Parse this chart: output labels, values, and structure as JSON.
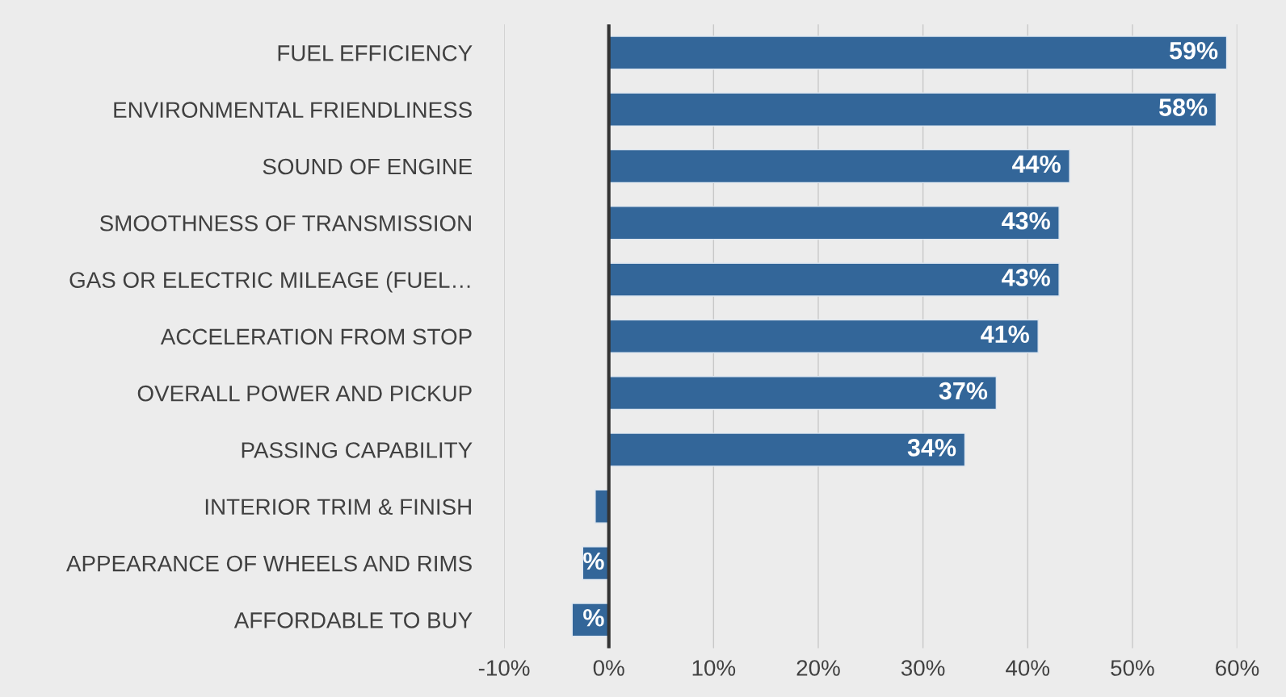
{
  "chart_data": {
    "type": "bar",
    "orientation": "horizontal",
    "categories": [
      "FUEL EFFICIENCY",
      "ENVIRONMENTAL FRIENDLINESS",
      "SOUND OF ENGINE",
      "SMOOTHNESS OF TRANSMISSION",
      "GAS OR ELECTRIC MILEAGE (FUEL…",
      "ACCELERATION FROM STOP",
      "OVERALL POWER AND PICKUP",
      "PASSING CAPABILITY",
      "INTERIOR TRIM & FINISH",
      "APPEARANCE OF WHEELS AND RIMS",
      "AFFORDABLE TO BUY"
    ],
    "values": [
      59,
      58,
      44,
      43,
      43,
      41,
      37,
      34,
      -1.3,
      -2.5,
      -3.5
    ],
    "value_labels": [
      "59%",
      "58%",
      "44%",
      "43%",
      "43%",
      "41%",
      "37%",
      "34%",
      null,
      "%",
      "%"
    ],
    "color": "#336699",
    "xlim": [
      -10,
      60
    ],
    "xticks": [
      {
        "value": -10,
        "label": "-10%"
      },
      {
        "value": 0,
        "label": "0%"
      },
      {
        "value": 10,
        "label": "10%"
      },
      {
        "value": 20,
        "label": "20%"
      },
      {
        "value": 30,
        "label": "30%"
      },
      {
        "value": 40,
        "label": "40%"
      },
      {
        "value": 50,
        "label": "50%"
      },
      {
        "value": 60,
        "label": "60%"
      }
    ],
    "grid": "x",
    "legend": false
  }
}
